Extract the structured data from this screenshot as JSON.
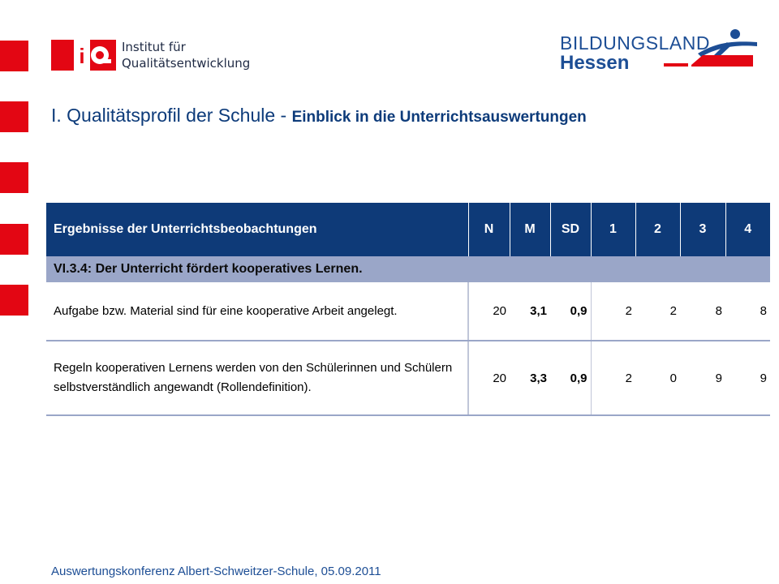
{
  "logos": {
    "left": {
      "line1": "Institut für",
      "line2": "Qualitätsentwicklung",
      "mark_letters": "iq"
    },
    "right": {
      "line1": "BILDUNGSLAND",
      "line2": "Hessen"
    }
  },
  "title": {
    "main": "I. Qualitätsprofil der Schule - ",
    "sub": "Einblick in die Unterrichtsauswertungen"
  },
  "table": {
    "headers": [
      "Ergebnisse der Unterrichtsbeobachtungen",
      "N",
      "M",
      "SD",
      "1",
      "2",
      "3",
      "4"
    ],
    "section": "VI.3.4: Der Unterricht fördert kooperatives Lernen.",
    "rows": [
      {
        "text": "Aufgabe bzw. Material sind für eine kooperative Arbeit angelegt.",
        "n": "20",
        "m": "3,1",
        "sd": "0,9",
        "c1": "2",
        "c2": "2",
        "c3": "8",
        "c4": "8"
      },
      {
        "text": "Regeln kooperativen Lernens werden von den Schülerinnen und Schülern selbstverständlich angewandt (Rollendefinition).",
        "n": "20",
        "m": "3,3",
        "sd": "0,9",
        "c1": "2",
        "c2": "0",
        "c3": "9",
        "c4": "9"
      }
    ]
  },
  "footer": "Auswertungskonferenz Albert-Schweitzer-Schule, 05.09.2011",
  "colors": {
    "accent_red": "#e30613",
    "header_blue": "#0e3a78",
    "section_gray_blue": "#9aa6c8",
    "title_blue": "#0d3b7a"
  }
}
